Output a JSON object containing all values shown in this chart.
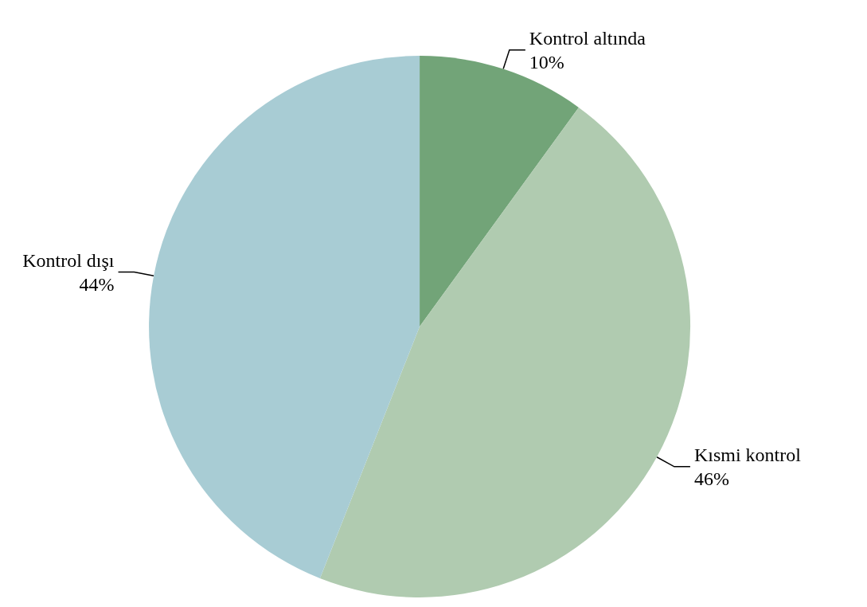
{
  "chart_data": {
    "type": "pie",
    "categories": [
      "Kontrol altında",
      "Kısmi kontrol",
      "Kontrol dışı"
    ],
    "values": [
      10,
      46,
      44
    ],
    "value_labels": [
      "10%",
      "46%",
      "44%"
    ],
    "colors": [
      "#72a478",
      "#b0cbb0",
      "#a8ccd4"
    ],
    "legend": false
  }
}
